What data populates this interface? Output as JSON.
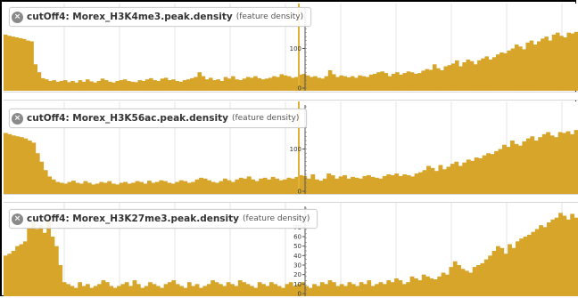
{
  "colors": {
    "bar": "#D6A52A",
    "bar_dark": "#C8951A",
    "grid": "#e6e6e6",
    "highlight": "#E0B23A"
  },
  "tracks": [
    {
      "name": "cutOff4: Morex_H3K4me3.peak.density",
      "sub": "(feature density)",
      "close_icon": "close-circle-icon",
      "y_ticks": [
        "0",
        "100"
      ],
      "chart_data": {
        "type": "bar",
        "ylim": [
          0,
          200
        ],
        "values": [
          135,
          132,
          130,
          128,
          126,
          124,
          120,
          118,
          60,
          40,
          25,
          22,
          18,
          20,
          16,
          18,
          20,
          15,
          18,
          14,
          20,
          16,
          22,
          17,
          14,
          18,
          24,
          20,
          16,
          14,
          18,
          20,
          22,
          18,
          16,
          15,
          20,
          18,
          22,
          25,
          20,
          18,
          24,
          26,
          20,
          22,
          18,
          16,
          20,
          22,
          25,
          28,
          40,
          30,
          22,
          26,
          20,
          22,
          18,
          28,
          24,
          30,
          22,
          20,
          24,
          28,
          26,
          30,
          25,
          22,
          24,
          26,
          30,
          28,
          35,
          32,
          30,
          26,
          28,
          34,
          36,
          32,
          28,
          30,
          26,
          24,
          30,
          45,
          35,
          28,
          32,
          30,
          27,
          30,
          26,
          32,
          30,
          28,
          34,
          36,
          40,
          42,
          38,
          30,
          36,
          40,
          34,
          38,
          42,
          40,
          36,
          38,
          44,
          48,
          46,
          60,
          50,
          45,
          55,
          58,
          62,
          70,
          55,
          65,
          72,
          68,
          60,
          70,
          75,
          80,
          72,
          78,
          85,
          90,
          88,
          95,
          100,
          110,
          105,
          98,
          115,
          120,
          110,
          118,
          125,
          130,
          120,
          135,
          140,
          132,
          128,
          140,
          138,
          142
        ]
      }
    },
    {
      "name": "cutOff4: Morex_H3K56ac.peak.density",
      "sub": "(feature density)",
      "close_icon": "close-circle-icon",
      "y_ticks": [
        "0",
        "100"
      ],
      "chart_data": {
        "type": "bar",
        "ylim": [
          0,
          200
        ],
        "values": [
          138,
          135,
          132,
          130,
          128,
          125,
          120,
          115,
          90,
          70,
          50,
          35,
          28,
          22,
          20,
          18,
          22,
          25,
          20,
          18,
          24,
          20,
          16,
          18,
          22,
          20,
          24,
          18,
          16,
          20,
          22,
          18,
          20,
          24,
          22,
          18,
          25,
          20,
          22,
          26,
          24,
          20,
          18,
          22,
          26,
          24,
          20,
          22,
          28,
          32,
          30,
          26,
          22,
          20,
          24,
          30,
          26,
          22,
          28,
          32,
          30,
          35,
          28,
          24,
          30,
          32,
          28,
          34,
          30,
          26,
          28,
          32,
          30,
          34,
          38,
          36,
          30,
          40,
          28,
          25,
          30,
          42,
          38,
          30,
          35,
          38,
          30,
          34,
          32,
          30,
          36,
          38,
          34,
          32,
          30,
          36,
          40,
          38,
          42,
          36,
          40,
          38,
          35,
          42,
          45,
          50,
          60,
          55,
          48,
          62,
          52,
          58,
          65,
          70,
          60,
          68,
          75,
          72,
          80,
          78,
          85,
          90,
          88,
          95,
          100,
          110,
          105,
          120,
          112,
          108,
          118,
          125,
          130,
          120,
          128,
          135,
          140,
          132,
          128,
          140,
          138,
          142,
          135,
          145
        ]
      }
    },
    {
      "name": "cutOff4: Morex_H3K27me3.peak.density",
      "sub": "(feature density)",
      "close_icon": "close-circle-icon",
      "y_ticks": [
        "0",
        "10",
        "20",
        "30",
        "40",
        "50",
        "60",
        "70",
        "80"
      ],
      "chart_data": {
        "type": "bar",
        "ylim": [
          0,
          90
        ],
        "values": [
          40,
          42,
          45,
          50,
          52,
          55,
          70,
          75,
          68,
          72,
          64,
          78,
          60,
          50,
          30,
          12,
          10,
          8,
          6,
          12,
          8,
          10,
          6,
          8,
          10,
          14,
          12,
          8,
          6,
          8,
          10,
          12,
          8,
          14,
          10,
          6,
          8,
          12,
          10,
          8,
          6,
          10,
          12,
          14,
          10,
          8,
          6,
          12,
          8,
          10,
          6,
          8,
          10,
          14,
          12,
          10,
          8,
          12,
          10,
          8,
          14,
          12,
          10,
          8,
          6,
          12,
          10,
          8,
          12,
          10,
          8,
          6,
          10,
          12,
          8,
          10,
          12,
          8,
          6,
          10,
          8,
          12,
          10,
          14,
          12,
          8,
          10,
          8,
          12,
          10,
          8,
          12,
          10,
          14,
          8,
          10,
          12,
          10,
          14,
          12,
          16,
          14,
          10,
          12,
          18,
          16,
          14,
          20,
          18,
          16,
          15,
          18,
          22,
          20,
          28,
          34,
          30,
          26,
          24,
          22,
          28,
          30,
          32,
          36,
          40,
          45,
          50,
          48,
          42,
          52,
          48,
          55,
          58,
          60,
          62,
          65,
          68,
          72,
          70,
          75,
          78,
          80,
          85,
          82,
          78,
          84,
          80
        ]
      }
    }
  ]
}
